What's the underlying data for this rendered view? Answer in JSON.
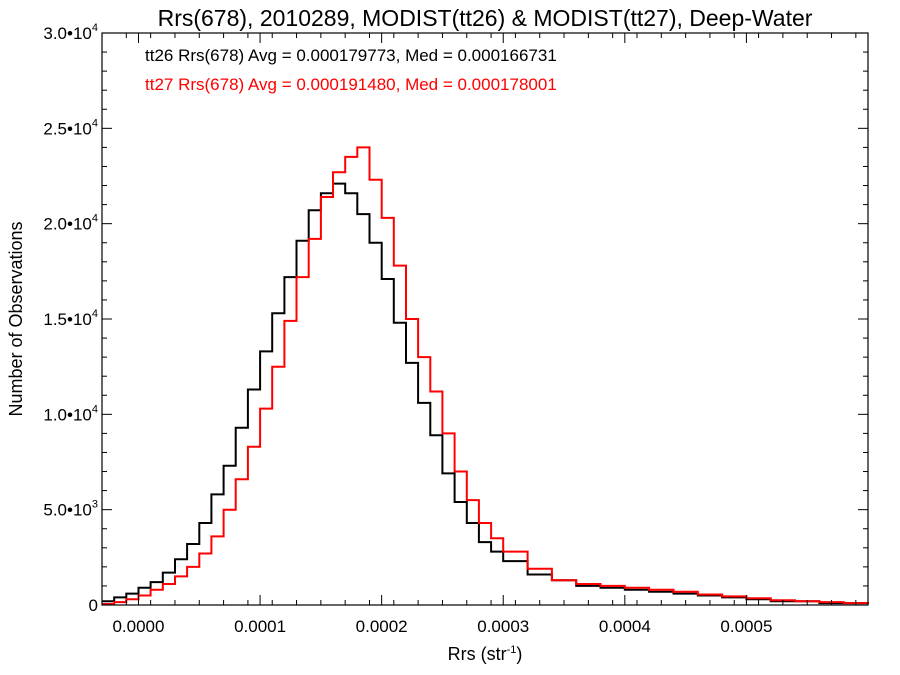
{
  "chart_data": {
    "type": "line",
    "title": "Rrs(678), 2010289, MODIST(tt26) & MODIST(tt27), Deep-Water",
    "xlabel_main": "Rrs (str",
    "xlabel_sup": "-1",
    "xlabel_end": ")",
    "ylabel": "Number of Observations",
    "xlim": [
      -3e-05,
      0.0006
    ],
    "ylim": [
      0,
      30000
    ],
    "grid": false,
    "x_ticks": [
      {
        "value": 0.0,
        "label": "0.0000"
      },
      {
        "value": 0.0001,
        "label": "0.0001"
      },
      {
        "value": 0.0002,
        "label": "0.0002"
      },
      {
        "value": 0.0003,
        "label": "0.0003"
      },
      {
        "value": 0.0004,
        "label": "0.0004"
      },
      {
        "value": 0.0005,
        "label": "0.0005"
      }
    ],
    "y_ticks": [
      {
        "value": 0,
        "mant": "0",
        "exp": ""
      },
      {
        "value": 5000,
        "mant": "5.0•10",
        "exp": "3"
      },
      {
        "value": 10000,
        "mant": "1.0•10",
        "exp": "4"
      },
      {
        "value": 15000,
        "mant": "1.5•10",
        "exp": "4"
      },
      {
        "value": 20000,
        "mant": "2.0•10",
        "exp": "4"
      },
      {
        "value": 25000,
        "mant": "2.5•10",
        "exp": "4"
      },
      {
        "value": 30000,
        "mant": "3.0•10",
        "exp": "4"
      }
    ],
    "annotations": [
      {
        "text": "tt26 Rrs(678) Avg = 0.000179773, Med = 0.000166731",
        "color": "#000000"
      },
      {
        "text": "tt27 Rrs(678) Avg = 0.000191480, Med = 0.000178001",
        "color": "#ff0000"
      }
    ],
    "series": [
      {
        "color": "#000000",
        "x": [
          -3e-05,
          -2e-05,
          -1e-05,
          0.0,
          1e-05,
          2e-05,
          3e-05,
          4e-05,
          5e-05,
          6e-05,
          7e-05,
          8e-05,
          9e-05,
          0.0001,
          0.00011,
          0.00012,
          0.00013,
          0.00014,
          0.00015,
          0.00016,
          0.00017,
          0.00018,
          0.00019,
          0.0002,
          0.00021,
          0.00022,
          0.00023,
          0.00024,
          0.00025,
          0.00026,
          0.00027,
          0.00028,
          0.00029,
          0.0003,
          0.00032,
          0.00034,
          0.00036,
          0.00038,
          0.0004,
          0.00042,
          0.00044,
          0.00046,
          0.00048,
          0.0005,
          0.00052,
          0.00054,
          0.00056,
          0.00058,
          0.0006
        ],
        "y": [
          200,
          400,
          600,
          900,
          1200,
          1700,
          2400,
          3200,
          4300,
          5800,
          7300,
          9300,
          11300,
          13300,
          15300,
          17200,
          19100,
          20700,
          21600,
          22100,
          21600,
          20500,
          19000,
          17100,
          14800,
          12700,
          10600,
          8900,
          6900,
          5400,
          4300,
          3300,
          2800,
          2300,
          1600,
          1300,
          1000,
          900,
          800,
          700,
          600,
          500,
          400,
          300,
          200,
          200,
          100,
          100,
          50
        ]
      },
      {
        "color": "#ff0000",
        "x": [
          -3e-05,
          -2e-05,
          -1e-05,
          0.0,
          1e-05,
          2e-05,
          3e-05,
          4e-05,
          5e-05,
          6e-05,
          7e-05,
          8e-05,
          9e-05,
          0.0001,
          0.00011,
          0.00012,
          0.00013,
          0.00014,
          0.00015,
          0.00016,
          0.00017,
          0.00018,
          0.00019,
          0.0002,
          0.00021,
          0.00022,
          0.00023,
          0.00024,
          0.00025,
          0.00026,
          0.00027,
          0.00028,
          0.00029,
          0.0003,
          0.00032,
          0.00034,
          0.00036,
          0.00038,
          0.0004,
          0.00042,
          0.00044,
          0.00046,
          0.00048,
          0.0005,
          0.00052,
          0.00054,
          0.00056,
          0.00058,
          0.0006
        ],
        "y": [
          50,
          150,
          300,
          500,
          800,
          1100,
          1500,
          2000,
          2700,
          3600,
          5000,
          6600,
          8300,
          10300,
          12500,
          14900,
          17200,
          19200,
          21400,
          22700,
          23500,
          24000,
          22300,
          20300,
          17800,
          15000,
          13000,
          11200,
          9000,
          7000,
          5500,
          4300,
          3500,
          2800,
          1900,
          1300,
          1100,
          1000,
          900,
          800,
          700,
          550,
          450,
          350,
          250,
          200,
          150,
          100,
          50
        ]
      }
    ]
  }
}
